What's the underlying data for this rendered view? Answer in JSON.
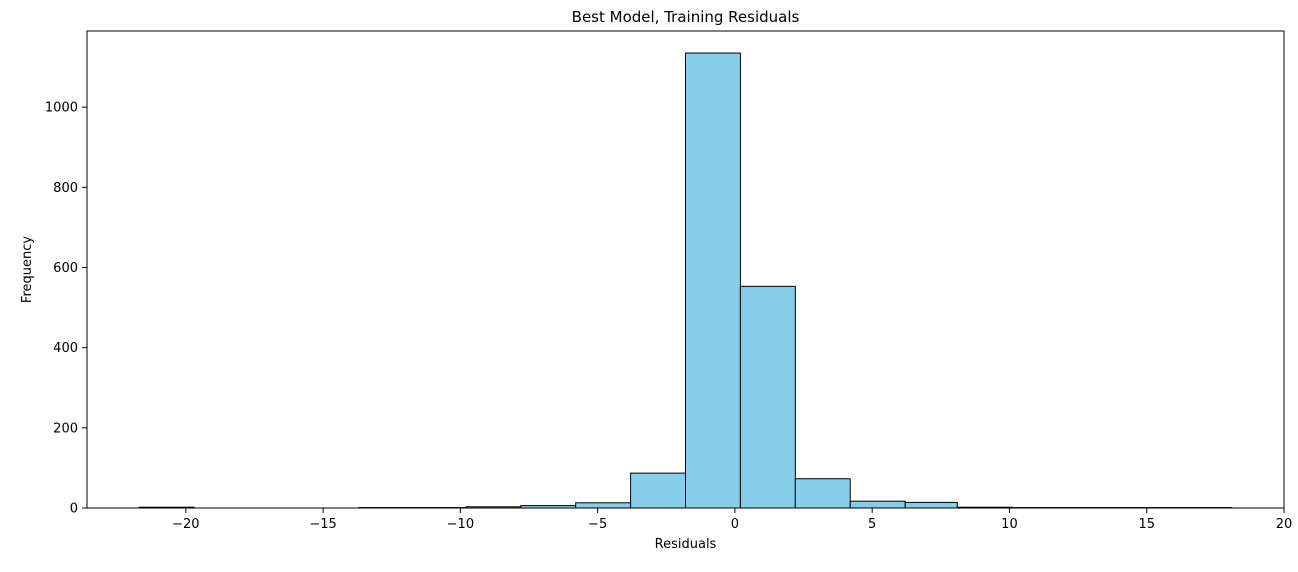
{
  "chart_data": {
    "type": "bar",
    "title": "Best Model, Training Residuals",
    "xlabel": "Residuals",
    "ylabel": "Frequency",
    "xlim": [
      -23.6,
      20.0
    ],
    "ylim": [
      0,
      1190
    ],
    "xticks": [
      -20,
      -15,
      -10,
      -5,
      0,
      5,
      10,
      15,
      20
    ],
    "xtick_labels": [
      "−20",
      "−15",
      "−10",
      "−5",
      "0",
      "5",
      "10",
      "15",
      "20"
    ],
    "yticks": [
      0,
      200,
      400,
      600,
      800,
      1000
    ],
    "ytick_labels": [
      "0",
      "200",
      "400",
      "600",
      "800",
      "1000"
    ],
    "bin_edges": [
      -21.7,
      -19.7,
      -17.7,
      -15.7,
      -13.7,
      -11.7,
      -9.8,
      -7.8,
      -5.8,
      -3.8,
      -1.8,
      0.2,
      2.2,
      4.2,
      6.2,
      8.1,
      10.1,
      12.1,
      14.1,
      16.1,
      18.1
    ],
    "values": [
      2,
      0,
      0,
      0,
      1,
      1,
      3,
      6,
      13,
      87,
      1135,
      553,
      73,
      17,
      14,
      2,
      1,
      1,
      1,
      1
    ],
    "bar_color": "#87ceeb",
    "edge_color": "#000000"
  }
}
